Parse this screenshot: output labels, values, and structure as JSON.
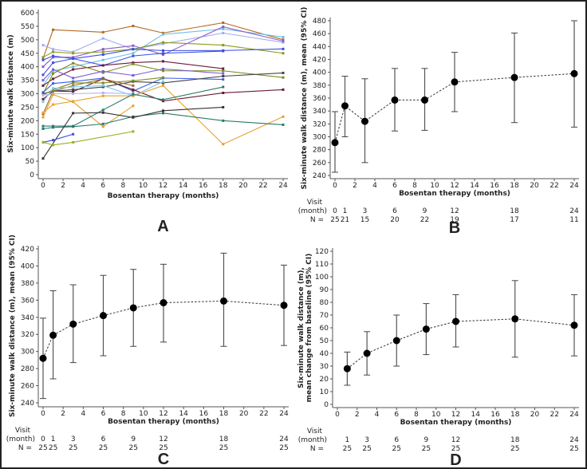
{
  "chart_data": [
    {
      "panel_label": "A",
      "type": "line",
      "xlabel": "Bosentan therapy (months)",
      "ylabel": "Six-minute walk distance (m)",
      "xlim": [
        0,
        24
      ],
      "ylim": [
        0,
        600
      ],
      "xticks": [
        0,
        2,
        4,
        6,
        8,
        10,
        12,
        14,
        16,
        18,
        20,
        22,
        24
      ],
      "yticks": [
        0,
        50,
        100,
        150,
        200,
        250,
        300,
        350,
        400,
        450,
        500,
        550,
        600
      ],
      "grid": false,
      "series": [
        {
          "color": "#b06a1e",
          "x": [
            0,
            1,
            6,
            9,
            12,
            18,
            24
          ],
          "y": [
            430,
            537,
            528,
            551,
            525,
            563,
            500
          ]
        },
        {
          "color": "#6ec0e8",
          "x": [
            0,
            1,
            3,
            6,
            9,
            12,
            18,
            24
          ],
          "y": [
            330,
            385,
            400,
            425,
            450,
            520,
            540,
            510
          ]
        },
        {
          "color": "#a3acf2",
          "x": [
            0,
            1,
            3,
            6,
            9,
            12,
            18,
            24
          ],
          "y": [
            480,
            465,
            455,
            505,
            465,
            485,
            525,
            490
          ]
        },
        {
          "color": "#8a5cc8",
          "x": [
            0,
            1,
            3,
            6,
            9,
            12,
            18,
            24
          ],
          "y": [
            400,
            435,
            435,
            465,
            478,
            445,
            548,
            495
          ]
        },
        {
          "color": "#8a9a1e",
          "x": [
            0,
            1,
            3,
            6,
            9,
            12,
            18,
            24
          ],
          "y": [
            435,
            455,
            450,
            455,
            465,
            490,
            480,
            450
          ]
        },
        {
          "color": "#3a4ee0",
          "x": [
            0,
            1,
            3,
            6,
            9,
            12,
            18,
            24
          ],
          "y": [
            425,
            440,
            430,
            445,
            465,
            460,
            460,
            466
          ]
        },
        {
          "color": "#3a4ee0",
          "x": [
            0,
            1,
            3,
            6,
            9,
            12,
            18
          ],
          "y": [
            370,
            415,
            430,
            405,
            440,
            450,
            458
          ]
        },
        {
          "color": "#6a1a3a",
          "x": [
            0,
            1,
            3,
            6,
            9,
            12,
            18
          ],
          "y": [
            330,
            355,
            390,
            405,
            415,
            420,
            393
          ]
        },
        {
          "color": "#7a8a18",
          "x": [
            0,
            1,
            3,
            6,
            9,
            12,
            18,
            24
          ],
          "y": [
            300,
            375,
            413,
            378,
            410,
            385,
            385,
            360
          ]
        },
        {
          "color": "#7a5ad8",
          "x": [
            0,
            1,
            3,
            6,
            9,
            12,
            18
          ],
          "y": [
            350,
            390,
            358,
            383,
            368,
            392,
            375
          ]
        },
        {
          "color": "#3a5ae8",
          "x": [
            0,
            1,
            3,
            6,
            9,
            12,
            18
          ],
          "y": [
            305,
            338,
            345,
            358,
            310,
            358,
            353
          ]
        },
        {
          "color": "#6a1a3a",
          "x": [
            0,
            1,
            3,
            6,
            9,
            12,
            18,
            24
          ],
          "y": [
            280,
            310,
            308,
            355,
            315,
            273,
            303,
            315
          ]
        },
        {
          "color": "#444444",
          "x": [
            0,
            1,
            3,
            6,
            9,
            12,
            18,
            24
          ],
          "y": [
            300,
            310,
            315,
            325,
            345,
            340,
            365,
            377
          ]
        },
        {
          "color": "#9a6a2a",
          "x": [
            0,
            1,
            3,
            6,
            9
          ],
          "y": [
            225,
            310,
            330,
            355,
            330
          ]
        },
        {
          "color": "#7a8a18",
          "x": [
            0,
            1,
            3,
            6,
            9,
            12
          ],
          "y": [
            295,
            315,
            340,
            340,
            348,
            360
          ]
        },
        {
          "color": "#b0b4f0",
          "x": [
            0,
            1,
            3,
            6,
            9
          ],
          "y": [
            295,
            300,
            300,
            303,
            300
          ]
        },
        {
          "color": "#7ec8ec",
          "x": [
            0,
            1,
            3,
            6,
            9,
            12
          ],
          "y": [
            270,
            320,
            325,
            330,
            292,
            345
          ]
        },
        {
          "color": "#e8a030",
          "x": [
            0,
            1,
            3,
            6,
            9
          ],
          "y": [
            213,
            297,
            270,
            178,
            255
          ]
        },
        {
          "color": "#e8a030",
          "x": [
            0,
            1,
            3,
            6,
            9,
            12,
            18,
            24
          ],
          "y": [
            230,
            260,
            272,
            292,
            292,
            330,
            113,
            215
          ]
        },
        {
          "color": "#2a7a6a",
          "x": [
            0,
            1,
            3,
            6,
            9,
            12,
            18
          ],
          "y": [
            180,
            180,
            180,
            240,
            298,
            278,
            325
          ]
        },
        {
          "color": "#2a7a6a",
          "x": [
            0,
            1,
            3,
            6,
            9,
            12,
            18,
            24
          ],
          "y": [
            170,
            175,
            178,
            188,
            215,
            228,
            200,
            185
          ]
        },
        {
          "color": "#333333",
          "x": [
            0,
            3,
            6,
            9,
            12,
            18
          ],
          "y": [
            60,
            228,
            230,
            212,
            237,
            250
          ]
        },
        {
          "color": "#3a4ee0",
          "x": [
            0,
            1,
            3
          ],
          "y": [
            120,
            128,
            150
          ]
        },
        {
          "color": "#9ab020",
          "x": [
            0,
            1,
            3,
            9
          ],
          "y": [
            120,
            110,
            120,
            160
          ]
        }
      ]
    },
    {
      "panel_label": "B",
      "type": "line",
      "xlabel": "Bosentan therapy (months)",
      "ylabel": "Six-minute walk distance (m), mean (95% CI)",
      "xlim": [
        0,
        24
      ],
      "ylim": [
        240,
        480
      ],
      "xticks": [
        0,
        2,
        4,
        6,
        8,
        10,
        12,
        14,
        16,
        18,
        20,
        22,
        24
      ],
      "yticks": [
        240,
        260,
        280,
        300,
        320,
        340,
        360,
        380,
        400,
        420,
        440,
        460,
        480
      ],
      "grid": false,
      "x": [
        0,
        1,
        3,
        6,
        9,
        12,
        18,
        24
      ],
      "mean": [
        291,
        348,
        324,
        357,
        357,
        385,
        392,
        398
      ],
      "ci_low": [
        245,
        300,
        260,
        309,
        310,
        339,
        322,
        315
      ],
      "ci_high": [
        339,
        394,
        390,
        406,
        406,
        431,
        461,
        480
      ],
      "table": {
        "visit_label": "Visit",
        "month_label": "(month)",
        "n_label": "N =",
        "months": [
          "0",
          "1",
          "3",
          "6",
          "9",
          "12",
          "18",
          "24"
        ],
        "n": [
          "25",
          "21",
          "15",
          "20",
          "22",
          "19",
          "17",
          "11"
        ]
      }
    },
    {
      "panel_label": "C",
      "type": "line",
      "xlabel": "Bosentan therapy (months)",
      "ylabel": "Six-minute walk distance (m), mean (95% CI)",
      "xlim": [
        0,
        24
      ],
      "ylim": [
        240,
        420
      ],
      "xticks": [
        0,
        2,
        4,
        6,
        8,
        10,
        12,
        14,
        16,
        18,
        20,
        22,
        24
      ],
      "yticks": [
        240,
        260,
        280,
        300,
        320,
        340,
        360,
        380,
        400,
        420
      ],
      "grid": false,
      "x": [
        0,
        1,
        3,
        6,
        9,
        12,
        18,
        24
      ],
      "mean": [
        292,
        319,
        332,
        342,
        351,
        357,
        359,
        354
      ],
      "ci_low": [
        245,
        268,
        287,
        295,
        306,
        311,
        306,
        307
      ],
      "ci_high": [
        339,
        371,
        378,
        389,
        396,
        402,
        415,
        401
      ],
      "table": {
        "visit_label": "Visit",
        "month_label": "(month)",
        "n_label": "N =",
        "months": [
          "0",
          "1",
          "3",
          "6",
          "9",
          "12",
          "18",
          "24"
        ],
        "n": [
          "25",
          "25",
          "25",
          "25",
          "25",
          "25",
          "25",
          "25"
        ]
      }
    },
    {
      "panel_label": "D",
      "type": "line",
      "xlabel": "Bosentan therapy (months)",
      "ylabel": [
        "Six-minute walk distance (m),",
        "mean change from baseline (95% CI)"
      ],
      "xlim": [
        0,
        24
      ],
      "ylim": [
        0,
        120
      ],
      "xticks": [
        0,
        2,
        4,
        6,
        8,
        10,
        12,
        14,
        16,
        18,
        20,
        22,
        24
      ],
      "yticks": [
        0,
        10,
        20,
        30,
        40,
        50,
        60,
        70,
        80,
        90,
        100,
        110,
        120
      ],
      "grid": false,
      "x": [
        1,
        3,
        6,
        9,
        12,
        18,
        24
      ],
      "mean": [
        28,
        40,
        50,
        59,
        65,
        67,
        62
      ],
      "ci_low": [
        15,
        23,
        30,
        39,
        45,
        37,
        38
      ],
      "ci_high": [
        41,
        57,
        70,
        79,
        86,
        97,
        86
      ],
      "table": {
        "visit_label": "Visit",
        "month_label": "(month)",
        "n_label": "N =",
        "months": [
          "1",
          "3",
          "6",
          "9",
          "12",
          "18",
          "24"
        ],
        "n": [
          "25",
          "25",
          "25",
          "25",
          "25",
          "25",
          "25"
        ]
      }
    }
  ]
}
